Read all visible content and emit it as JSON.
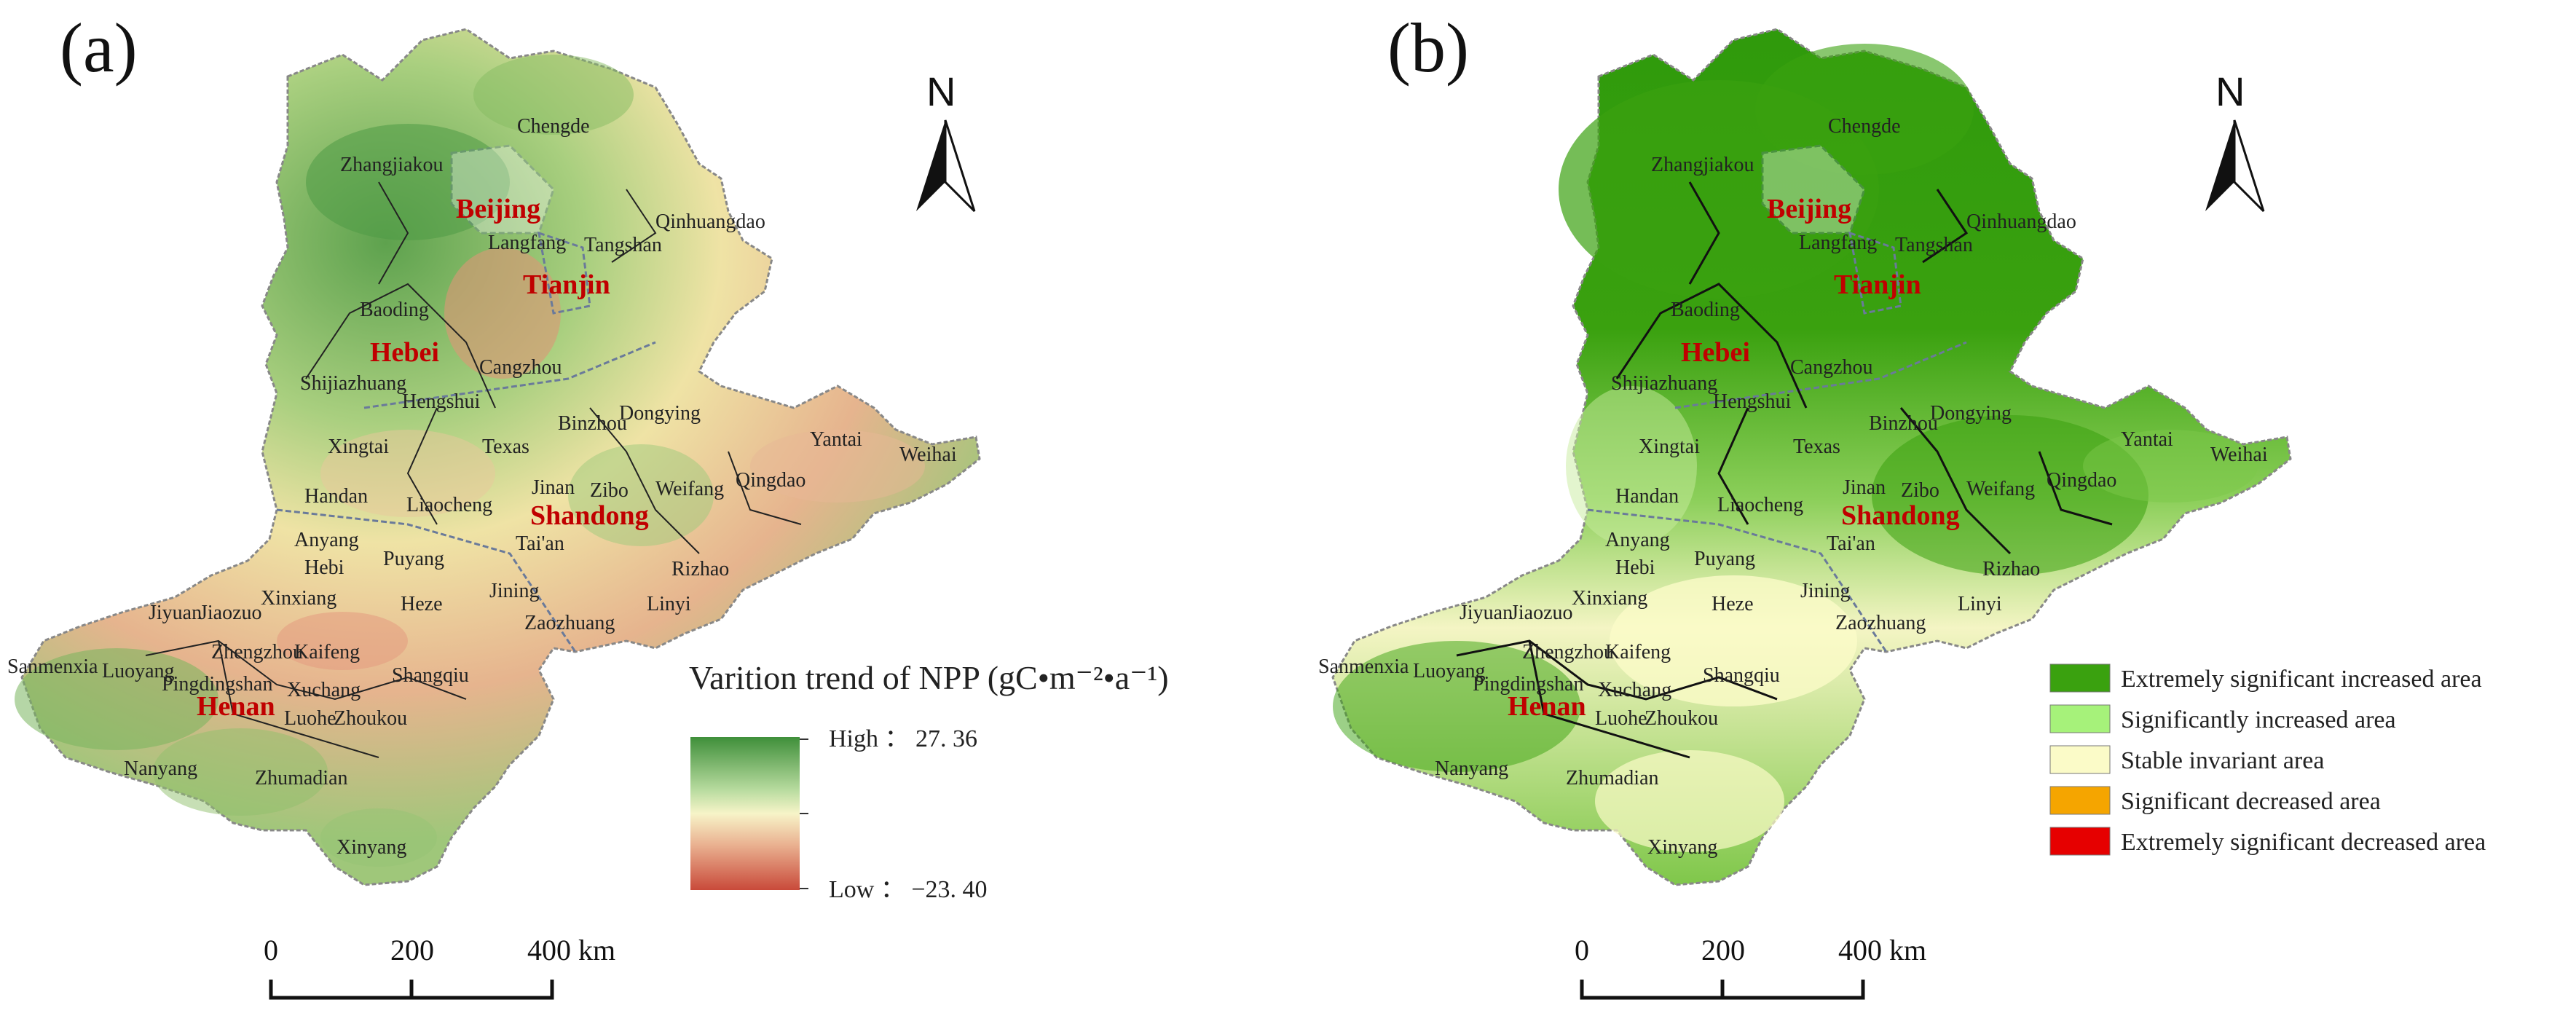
{
  "panel_a": {
    "label": "(a)",
    "north": "N",
    "legend": {
      "title": "Varition trend of NPP (gC•m⁻²•a⁻¹)",
      "high_label": "High ： 27. 36",
      "low_label": "Low ： −23. 40",
      "high_color": "#3f8f3a",
      "mid_color": "#f7f4c8",
      "low_color": "#c94a3a"
    },
    "scale": {
      "t0": "0",
      "t1": "200",
      "t2": "400 km"
    }
  },
  "panel_b": {
    "label": "(b)",
    "north": "N",
    "legend": [
      {
        "label": "Extremely significant increased area",
        "color": "#3aa10f"
      },
      {
        "label": "Significantly increased area",
        "color": "#a6f27a"
      },
      {
        "label": "Stable invariant area",
        "color": "#fbfbc8"
      },
      {
        "label": "Significant decreased area",
        "color": "#f5a500"
      },
      {
        "label": "Extremely significant decreased area",
        "color": "#e60000"
      }
    ],
    "scale": {
      "t0": "0",
      "t1": "200",
      "t2": "400 km"
    }
  },
  "provinces": [
    "Beijing",
    "Tianjin",
    "Hebei",
    "Shandong",
    "Henan"
  ],
  "cities": [
    "Chengde",
    "Zhangjiakou",
    "Qinhuangdao",
    "Langfang",
    "Tangshan",
    "Baoding",
    "Cangzhou",
    "Shijiazhuang",
    "Hengshui",
    "Dongying",
    "Binzhou",
    "Yantai",
    "Weihai",
    "Xingtai",
    "Texas",
    "Jinan",
    "Zibo",
    "Weifang",
    "Qingdao",
    "Handan",
    "Liaocheng",
    "Anyang",
    "Tai'an",
    "Hebi",
    "Puyang",
    "Rizhao",
    "Xinxiang",
    "Jiaozuo",
    "Jining",
    "Linyi",
    "Jiyuan",
    "Heze",
    "Zaozhuang",
    "Zhengzhou",
    "Kaifeng",
    "Sanmenxia",
    "Luoyang",
    "Pingdingshan",
    "Shangqiu",
    "Xuchang",
    "Luohe",
    "Zhoukou",
    "Nanyang",
    "Zhumadian",
    "Xinyang"
  ]
}
